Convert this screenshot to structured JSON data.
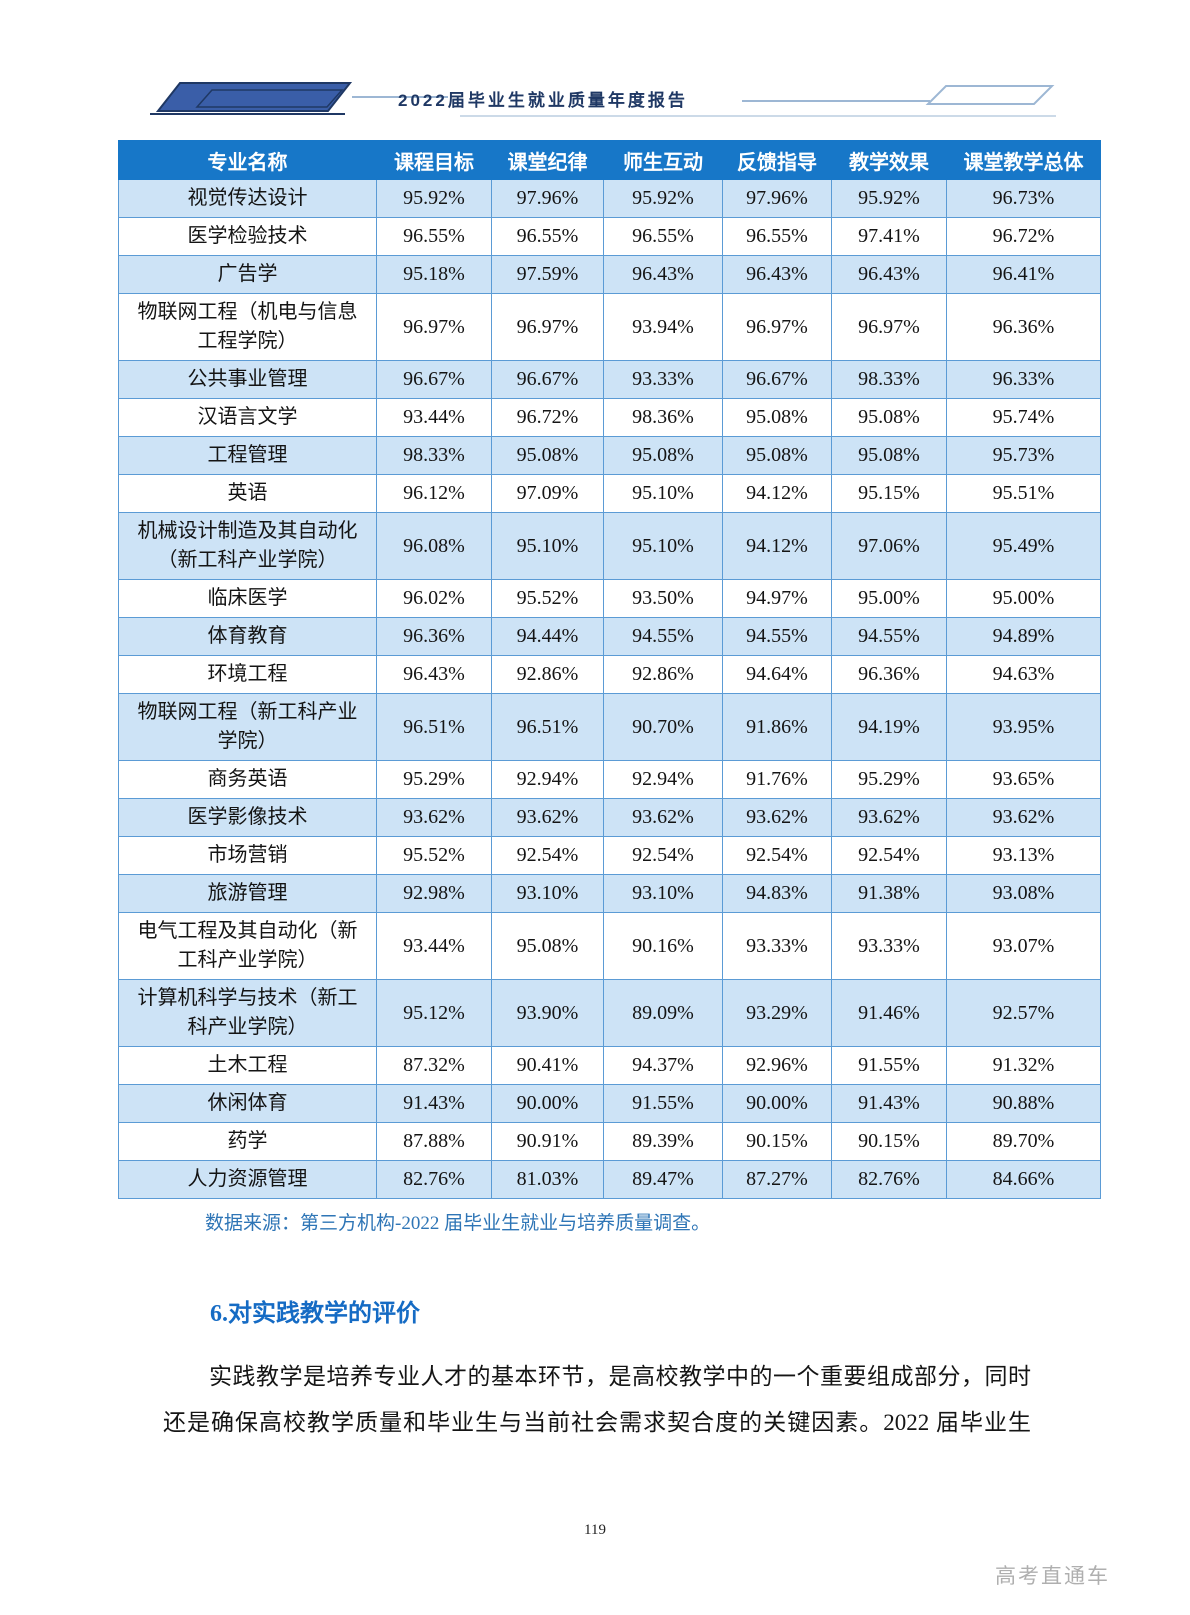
{
  "page": {
    "header_title": "2022届毕业生就业质量年度报告",
    "page_number": "119",
    "watermark": "高考直通车"
  },
  "table": {
    "columns": [
      "专业名称",
      "课程目标",
      "课堂纪律",
      "师生互动",
      "反馈指导",
      "教学效果",
      "课堂教学总体"
    ],
    "rows": [
      {
        "major": "视觉传达设计",
        "values": [
          "95.92%",
          "97.96%",
          "95.92%",
          "97.96%",
          "95.92%",
          "96.73%"
        ]
      },
      {
        "major": "医学检验技术",
        "values": [
          "96.55%",
          "96.55%",
          "96.55%",
          "96.55%",
          "97.41%",
          "96.72%"
        ]
      },
      {
        "major": "广告学",
        "values": [
          "95.18%",
          "97.59%",
          "96.43%",
          "96.43%",
          "96.43%",
          "96.41%"
        ]
      },
      {
        "major": "物联网工程（机电与信息工程学院）",
        "values": [
          "96.97%",
          "96.97%",
          "93.94%",
          "96.97%",
          "96.97%",
          "96.36%"
        ]
      },
      {
        "major": "公共事业管理",
        "values": [
          "96.67%",
          "96.67%",
          "93.33%",
          "96.67%",
          "98.33%",
          "96.33%"
        ]
      },
      {
        "major": "汉语言文学",
        "values": [
          "93.44%",
          "96.72%",
          "98.36%",
          "95.08%",
          "95.08%",
          "95.74%"
        ]
      },
      {
        "major": "工程管理",
        "values": [
          "98.33%",
          "95.08%",
          "95.08%",
          "95.08%",
          "95.08%",
          "95.73%"
        ]
      },
      {
        "major": "英语",
        "values": [
          "96.12%",
          "97.09%",
          "95.10%",
          "94.12%",
          "95.15%",
          "95.51%"
        ]
      },
      {
        "major": "机械设计制造及其自动化（新工科产业学院）",
        "values": [
          "96.08%",
          "95.10%",
          "95.10%",
          "94.12%",
          "97.06%",
          "95.49%"
        ]
      },
      {
        "major": "临床医学",
        "values": [
          "96.02%",
          "95.52%",
          "93.50%",
          "94.97%",
          "95.00%",
          "95.00%"
        ]
      },
      {
        "major": "体育教育",
        "values": [
          "96.36%",
          "94.44%",
          "94.55%",
          "94.55%",
          "94.55%",
          "94.89%"
        ]
      },
      {
        "major": "环境工程",
        "values": [
          "96.43%",
          "92.86%",
          "92.86%",
          "94.64%",
          "96.36%",
          "94.63%"
        ]
      },
      {
        "major": "物联网工程（新工科产业学院）",
        "values": [
          "96.51%",
          "96.51%",
          "90.70%",
          "91.86%",
          "94.19%",
          "93.95%"
        ]
      },
      {
        "major": "商务英语",
        "values": [
          "95.29%",
          "92.94%",
          "92.94%",
          "91.76%",
          "95.29%",
          "93.65%"
        ]
      },
      {
        "major": "医学影像技术",
        "values": [
          "93.62%",
          "93.62%",
          "93.62%",
          "93.62%",
          "93.62%",
          "93.62%"
        ]
      },
      {
        "major": "市场营销",
        "values": [
          "95.52%",
          "92.54%",
          "92.54%",
          "92.54%",
          "92.54%",
          "93.13%"
        ]
      },
      {
        "major": "旅游管理",
        "values": [
          "92.98%",
          "93.10%",
          "93.10%",
          "94.83%",
          "91.38%",
          "93.08%"
        ]
      },
      {
        "major": "电气工程及其自动化（新工科产业学院）",
        "values": [
          "93.44%",
          "95.08%",
          "90.16%",
          "93.33%",
          "93.33%",
          "93.07%"
        ]
      },
      {
        "major": "计算机科学与技术（新工科产业学院）",
        "values": [
          "95.12%",
          "93.90%",
          "89.09%",
          "93.29%",
          "91.46%",
          "92.57%"
        ]
      },
      {
        "major": "土木工程",
        "values": [
          "87.32%",
          "90.41%",
          "94.37%",
          "92.96%",
          "91.55%",
          "91.32%"
        ]
      },
      {
        "major": "休闲体育",
        "values": [
          "91.43%",
          "90.00%",
          "91.55%",
          "90.00%",
          "91.43%",
          "90.88%"
        ]
      },
      {
        "major": "药学",
        "values": [
          "87.88%",
          "90.91%",
          "89.39%",
          "90.15%",
          "90.15%",
          "89.70%"
        ]
      },
      {
        "major": "人力资源管理",
        "values": [
          "82.76%",
          "81.03%",
          "89.47%",
          "87.27%",
          "82.76%",
          "84.66%"
        ]
      }
    ]
  },
  "source_note": "数据来源：第三方机构-2022 届毕业生就业与培养质量调查。",
  "section": {
    "heading": "6.对实践教学的评价",
    "paragraph_line1": "实践教学是培养专业人才的基本环节，是高校教学中的一个重要组成部分，同时",
    "paragraph_line2": "还是确保高校教学质量和毕业生与当前社会需求契合度的关键因素。2022 届毕业生"
  },
  "colors": {
    "table_header_bg": "#1777C8",
    "table_row_alt_bg": "#CDE3F6",
    "table_border": "#5B9BD5",
    "title_navy": "#1F3864",
    "note_blue": "#2E75B6",
    "heading_blue": "#156BC4",
    "deco_blue": "#3A5EA8",
    "deco_dark": "#1F3864",
    "deco_line": "#9DB7D4",
    "watermark_gray": "#AFAFAF"
  }
}
